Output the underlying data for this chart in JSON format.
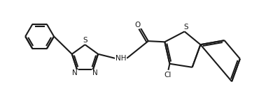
{
  "background_color": "#ffffff",
  "line_color": "#1a1a1a",
  "line_width": 1.5,
  "figsize": [
    4.0,
    1.54
  ],
  "dpi": 100,
  "xlim": [
    0,
    10
  ],
  "ylim": [
    0,
    3.85
  ],
  "off": 0.07
}
